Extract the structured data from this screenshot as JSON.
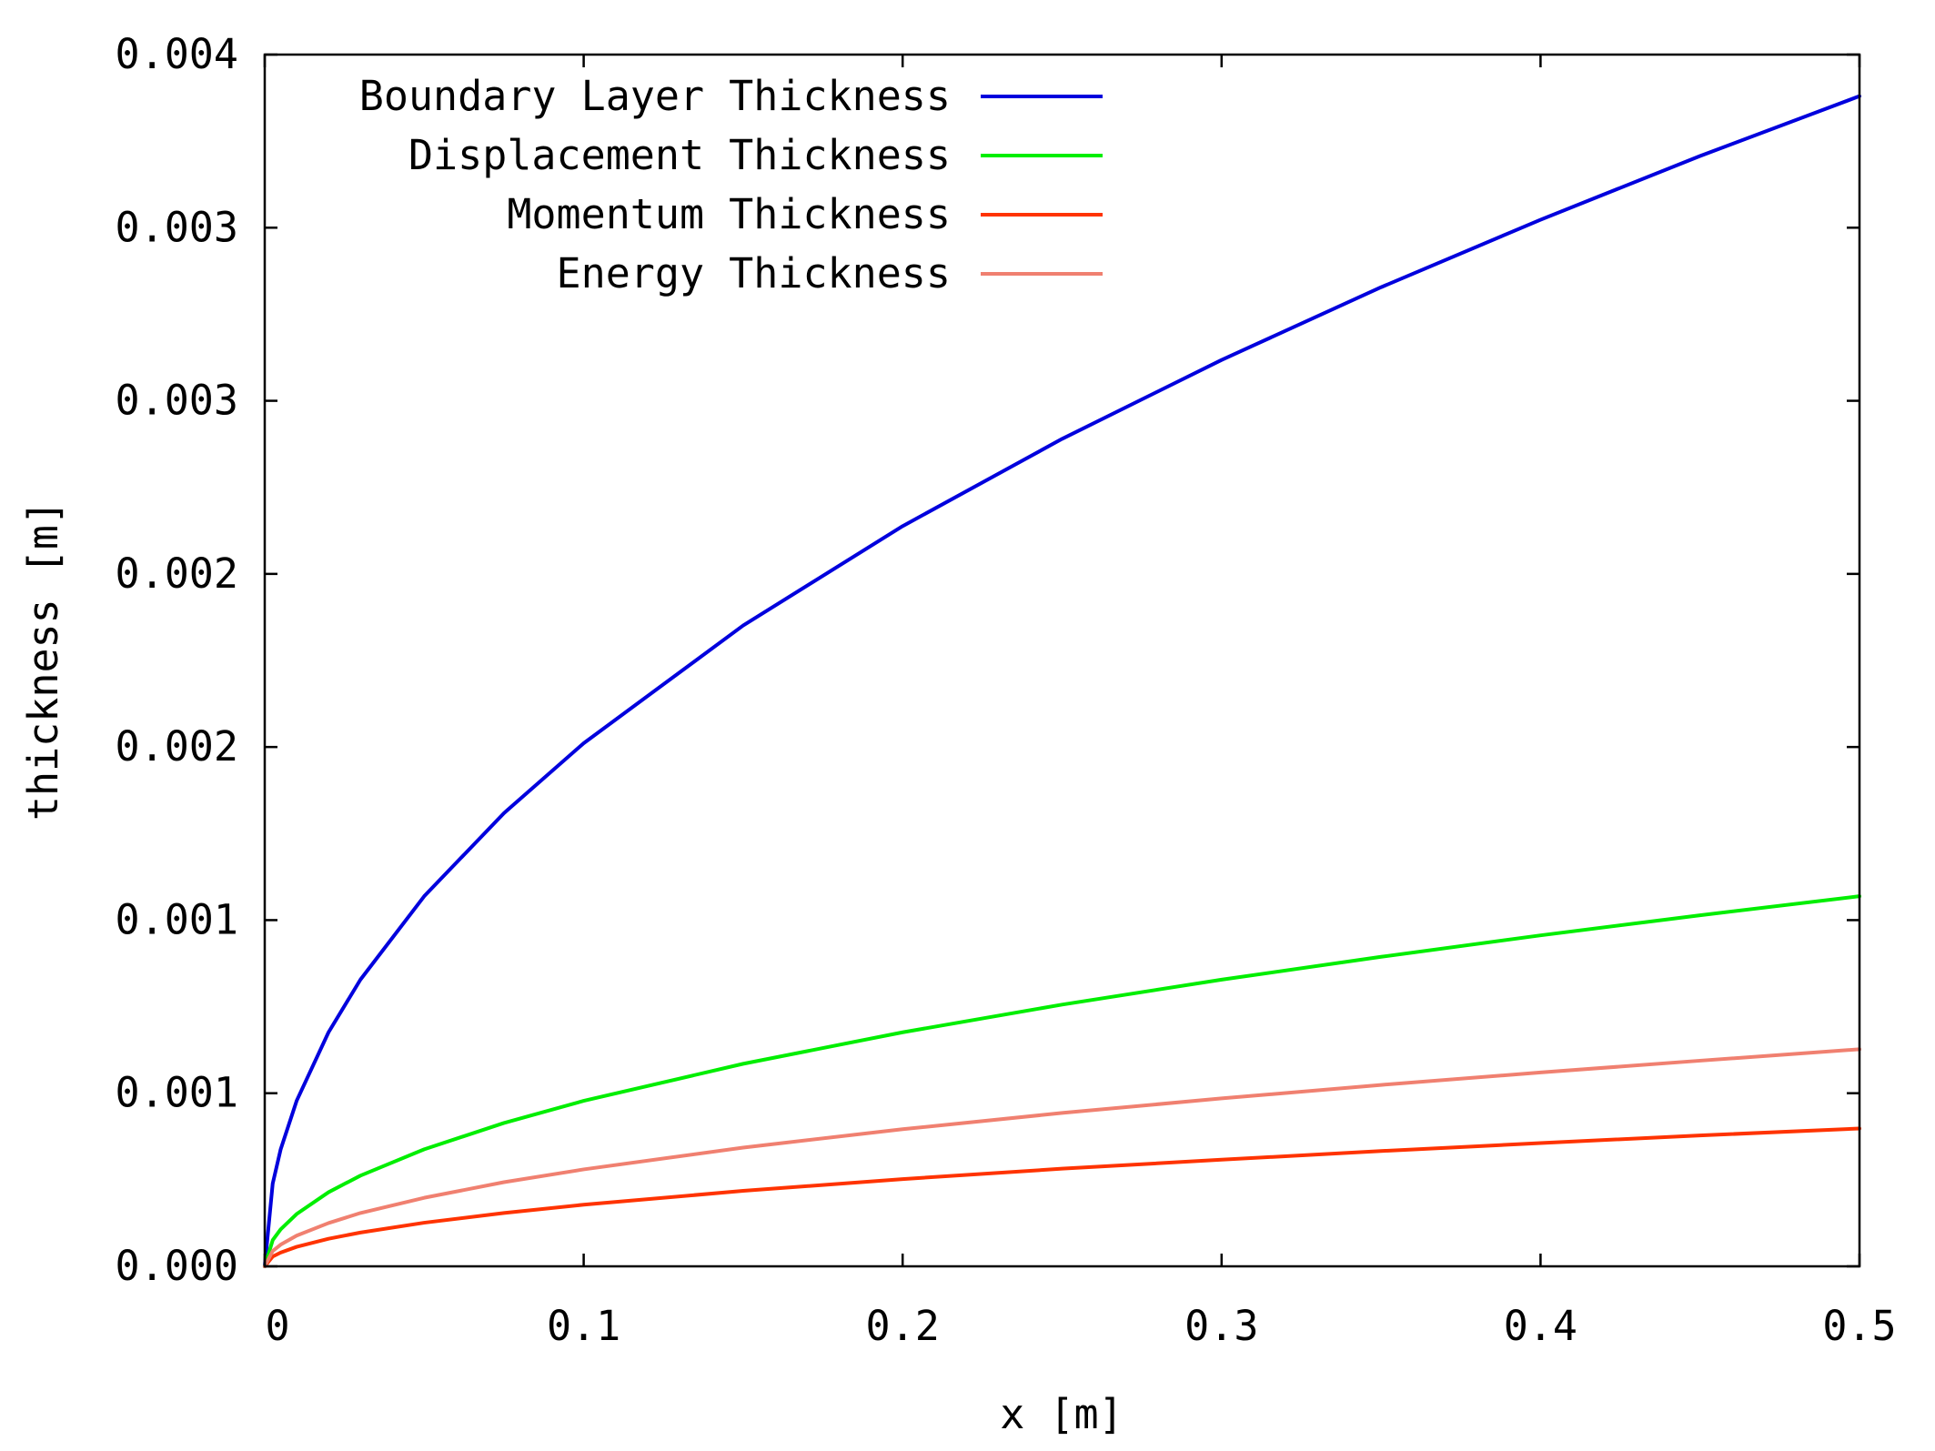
{
  "chart_data": {
    "type": "line",
    "title": "",
    "xlabel": "x [m]",
    "ylabel": "thickness [m]",
    "xlim": [
      0,
      0.5
    ],
    "ylim": [
      0,
      0.0035
    ],
    "x_ticks": [
      {
        "value": 0,
        "label": "0"
      },
      {
        "value": 0.1,
        "label": "0.1"
      },
      {
        "value": 0.2,
        "label": "0.2"
      },
      {
        "value": 0.3,
        "label": "0.3"
      },
      {
        "value": 0.4,
        "label": "0.4"
      },
      {
        "value": 0.5,
        "label": "0.5"
      }
    ],
    "y_ticks": [
      {
        "value": 0,
        "label": "0.000"
      },
      {
        "value": 0.0005,
        "label": "0.001"
      },
      {
        "value": 0.001,
        "label": "0.001"
      },
      {
        "value": 0.0015,
        "label": "0.002"
      },
      {
        "value": 0.002,
        "label": "0.002"
      },
      {
        "value": 0.0025,
        "label": "0.003"
      },
      {
        "value": 0.003,
        "label": "0.003"
      },
      {
        "value": 0.0035,
        "label": "0.004"
      }
    ],
    "grid": false,
    "legend_position": "top-left",
    "series": [
      {
        "name": "Boundary Layer Thickness",
        "color": "#0000dd",
        "x": [
          0,
          0.0025,
          0.005,
          0.01,
          0.02,
          0.03,
          0.05,
          0.075,
          0.1,
          0.15,
          0.2,
          0.25,
          0.3,
          0.35,
          0.4,
          0.45,
          0.5
        ],
        "y": [
          0,
          0.000239,
          0.000338,
          0.000478,
          0.000676,
          0.000828,
          0.001069,
          0.001309,
          0.001511,
          0.001851,
          0.002138,
          0.00239,
          0.002618,
          0.002828,
          0.003023,
          0.003207,
          0.00338
        ]
      },
      {
        "name": "Displacement Thickness",
        "color": "#00ee00",
        "x": [
          0,
          0.0025,
          0.005,
          0.01,
          0.02,
          0.03,
          0.05,
          0.075,
          0.1,
          0.15,
          0.2,
          0.25,
          0.3,
          0.35,
          0.4,
          0.45,
          0.5
        ],
        "y": [
          0,
          7.56e-05,
          0.000107,
          0.000151,
          0.000214,
          0.000262,
          0.000338,
          0.000414,
          0.000478,
          0.000585,
          0.000676,
          0.000756,
          0.000828,
          0.000894,
          0.000956,
          0.001014,
          0.001069
        ]
      },
      {
        "name": "Momentum Thickness",
        "color": "#ff3300",
        "x": [
          0,
          0.0025,
          0.005,
          0.01,
          0.02,
          0.03,
          0.05,
          0.075,
          0.1,
          0.15,
          0.2,
          0.25,
          0.3,
          0.35,
          0.4,
          0.45,
          0.5
        ],
        "y": [
          0,
          2.82e-05,
          3.98e-05,
          5.63e-05,
          7.96e-05,
          9.75e-05,
          0.000126,
          0.000154,
          0.000178,
          0.000218,
          0.000252,
          0.000282,
          0.000308,
          0.000333,
          0.000356,
          0.000378,
          0.000398
        ]
      },
      {
        "name": "Energy Thickness",
        "color": "#f08070",
        "x": [
          0,
          0.0025,
          0.005,
          0.01,
          0.02,
          0.03,
          0.05,
          0.075,
          0.1,
          0.15,
          0.2,
          0.25,
          0.3,
          0.35,
          0.4,
          0.45,
          0.5
        ],
        "y": [
          0,
          4.43e-05,
          6.27e-05,
          8.86e-05,
          0.000125,
          0.000154,
          0.000198,
          0.000243,
          0.00028,
          0.000343,
          0.000396,
          0.000443,
          0.000485,
          0.000524,
          0.00056,
          0.000594,
          0.000627
        ]
      }
    ]
  }
}
